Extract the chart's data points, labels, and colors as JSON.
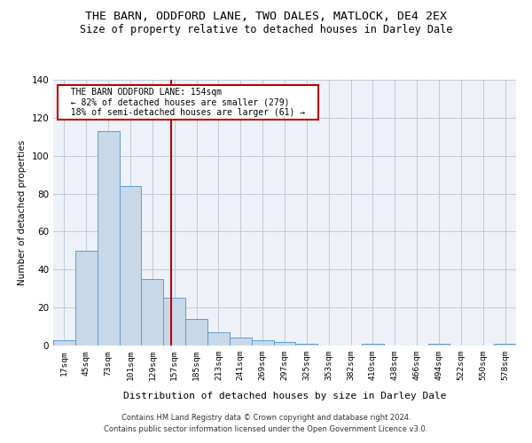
{
  "title": "THE BARN, ODDFORD LANE, TWO DALES, MATLOCK, DE4 2EX",
  "subtitle": "Size of property relative to detached houses in Darley Dale",
  "xlabel": "Distribution of detached houses by size in Darley Dale",
  "ylabel": "Number of detached properties",
  "footnote1": "Contains HM Land Registry data © Crown copyright and database right 2024.",
  "footnote2": "Contains public sector information licensed under the Open Government Licence v3.0.",
  "bar_labels": [
    "17sqm",
    "45sqm",
    "73sqm",
    "101sqm",
    "129sqm",
    "157sqm",
    "185sqm",
    "213sqm",
    "241sqm",
    "269sqm",
    "297sqm",
    "325sqm",
    "353sqm",
    "382sqm",
    "410sqm",
    "438sqm",
    "466sqm",
    "494sqm",
    "522sqm",
    "550sqm",
    "578sqm"
  ],
  "bar_values": [
    3,
    50,
    113,
    84,
    35,
    25,
    14,
    7,
    4,
    3,
    2,
    1,
    0,
    0,
    1,
    0,
    0,
    1,
    0,
    0,
    1
  ],
  "bar_color": "#c8d8e8",
  "bar_edge_color": "#5b9bd5",
  "grid_color": "#c0c8d8",
  "background_color": "#eef2f8",
  "vline_x": 4.85,
  "vline_color": "#c00000",
  "annotation_text": "  THE BARN ODDFORD LANE: 154sqm  \n  ← 82% of detached houses are smaller (279)  \n  18% of semi-detached houses are larger (61) →  ",
  "annotation_box_color": "#c00000",
  "ylim": [
    0,
    140
  ],
  "yticks": [
    0,
    20,
    40,
    60,
    80,
    100,
    120,
    140
  ],
  "title_fontsize": 9.5,
  "subtitle_fontsize": 8.5,
  "footnote_fontsize": 6.0
}
